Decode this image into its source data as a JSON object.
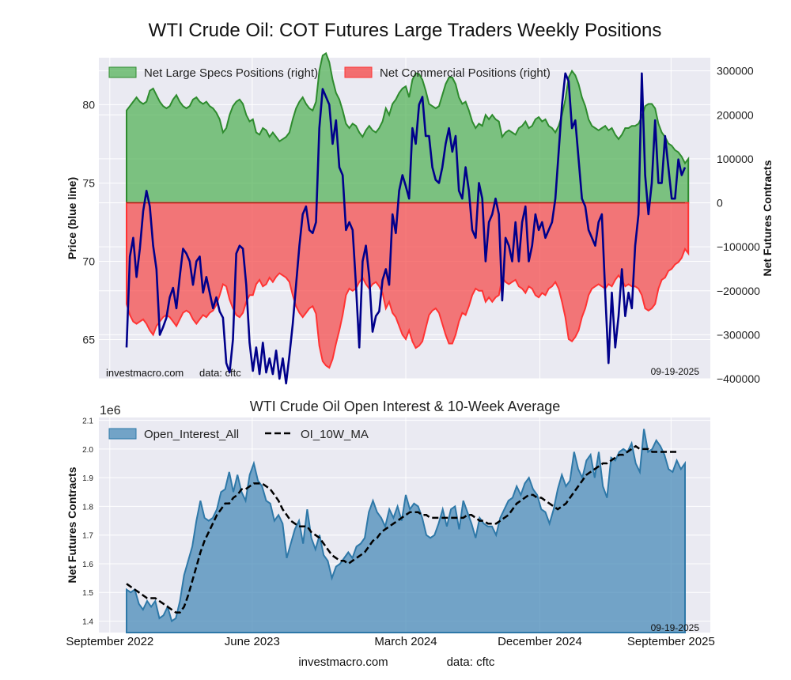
{
  "figure": {
    "title": "WTI Crude Oil: COT Futures Large Traders Weekly Positions",
    "footer_site": "investmacro.com",
    "footer_data": "data: cftc"
  },
  "chart_data": [
    {
      "type": "line+area",
      "title": "WTI Crude Oil: COT Futures Large Traders Weekly Positions",
      "ylabel_left": "Price (blue line)",
      "ylabel_right": "Net Futures Contracts",
      "left_ticks": [
        65,
        70,
        75,
        80
      ],
      "right_ticks": [
        -400000,
        -300000,
        -200000,
        -100000,
        0,
        100000,
        200000,
        300000
      ],
      "right_tick_labels": [
        "−400000",
        "−300000",
        "−200000",
        "−100000",
        "0",
        "100000",
        "200000",
        "300000"
      ],
      "ylim_left": [
        62.5,
        83
      ],
      "ylim_right": [
        -400000,
        330000
      ],
      "legend": [
        "Net Large Specs Positions (right)",
        "Net Commercial Positions (right)"
      ],
      "watermark_left": "investmacro.com",
      "watermark_data": "data: cftc",
      "date_label": "09-19-2025",
      "series": {
        "price": [
          64.5,
          70.3,
          71.5,
          69.0,
          70.8,
          73.2,
          74.5,
          73.5,
          71.0,
          69.5,
          65.3,
          65.8,
          66.4,
          67.7,
          68.3,
          67.0,
          69.0,
          70.8,
          70.5,
          70.0,
          68.5,
          70.0,
          70.3,
          68.0,
          69.0,
          68.0,
          67.0,
          67.7,
          66.8,
          66.4,
          63.5,
          62.9,
          65.0,
          70.5,
          71.0,
          70.8,
          68.5,
          64.8,
          63.0,
          64.5,
          62.8,
          64.8,
          62.9,
          63.8,
          62.8,
          64.3,
          62.5,
          63.8,
          62.2,
          64.0,
          66.0,
          68.5,
          71.0,
          73.0,
          73.5,
          72.0,
          71.8,
          72.5,
          78.5,
          81.0,
          80.5,
          80.0,
          77.5,
          79.0,
          76.0,
          75.5,
          72.0,
          72.5,
          72.0,
          68.5,
          64.5,
          70.0,
          71.0,
          69.0,
          65.5,
          66.5,
          66.8,
          68.8,
          69.5,
          68.5,
          73.0,
          71.8,
          74.5,
          75.5,
          74.8,
          74.0,
          78.5,
          77.5,
          80.0,
          80.5,
          78.0,
          78.0,
          76.0,
          75.2,
          75.0,
          76.0,
          77.5,
          78.5,
          77.0,
          78.0,
          74.5,
          74.0,
          76.0,
          74.5,
          72.0,
          71.5,
          75.0,
          74.0,
          70.0,
          72.5,
          73.0,
          74.0,
          73.0,
          67.5,
          71.5,
          71.0,
          70.0,
          72.5,
          70.0,
          72.5,
          73.5,
          70.0,
          71.0,
          73.0,
          72.0,
          72.5,
          71.5,
          72.0,
          72.5,
          74.0,
          77.0,
          80.0,
          82.0,
          81.5,
          78.5,
          79.0,
          76.5,
          74.0,
          73.5,
          72.0,
          71.5,
          71.0,
          72.5,
          73.0,
          68.0,
          63.5,
          68.0,
          64.5,
          66.5,
          69.5,
          66.5,
          68.0,
          67.0,
          71.0,
          73.0,
          82.0,
          75.5,
          73.0,
          75.0,
          79.0,
          75.0,
          75.0,
          78.0,
          76.0,
          74.0,
          74.0,
          76.5,
          75.5,
          76.0
        ],
        "specs": [
          210000,
          220000,
          230000,
          240000,
          230000,
          225000,
          230000,
          255000,
          260000,
          245000,
          230000,
          220000,
          215000,
          220000,
          235000,
          245000,
          230000,
          220000,
          215000,
          220000,
          235000,
          240000,
          230000,
          225000,
          230000,
          220000,
          215000,
          205000,
          190000,
          160000,
          170000,
          200000,
          220000,
          230000,
          235000,
          225000,
          200000,
          185000,
          190000,
          160000,
          155000,
          170000,
          165000,
          150000,
          160000,
          150000,
          140000,
          145000,
          150000,
          160000,
          190000,
          215000,
          230000,
          240000,
          225000,
          215000,
          210000,
          230000,
          300000,
          335000,
          340000,
          320000,
          280000,
          250000,
          235000,
          210000,
          180000,
          170000,
          180000,
          175000,
          160000,
          150000,
          165000,
          175000,
          165000,
          160000,
          170000,
          185000,
          215000,
          200000,
          225000,
          235000,
          250000,
          260000,
          265000,
          240000,
          280000,
          295000,
          293000,
          280000,
          255000,
          225000,
          220000,
          215000,
          220000,
          245000,
          270000,
          285000,
          285000,
          270000,
          240000,
          225000,
          230000,
          210000,
          185000,
          170000,
          180000,
          175000,
          200000,
          190000,
          200000,
          190000,
          185000,
          150000,
          160000,
          165000,
          160000,
          155000,
          170000,
          175000,
          185000,
          170000,
          175000,
          190000,
          195000,
          185000,
          190000,
          175000,
          170000,
          160000,
          175000,
          200000,
          235000,
          285000,
          300000,
          290000,
          270000,
          240000,
          220000,
          190000,
          175000,
          170000,
          165000,
          170000,
          175000,
          165000,
          170000,
          155000,
          145000,
          155000,
          170000,
          170000,
          175000,
          175000,
          180000,
          195000,
          220000,
          225000,
          225000,
          215000,
          180000,
          160000,
          150000,
          135000,
          130000,
          120000,
          115000,
          105000,
          90000,
          100000
        ],
        "comm": [
          -230000,
          -255000,
          -270000,
          -275000,
          -270000,
          -265000,
          -275000,
          -290000,
          -300000,
          -280000,
          -270000,
          -260000,
          -255000,
          -260000,
          -270000,
          -280000,
          -265000,
          -250000,
          -245000,
          -250000,
          -265000,
          -275000,
          -265000,
          -255000,
          -260000,
          -250000,
          -245000,
          -232000,
          -210000,
          -185000,
          -190000,
          -220000,
          -240000,
          -255000,
          -260000,
          -250000,
          -225000,
          -210000,
          -210000,
          -185000,
          -175000,
          -190000,
          -185000,
          -170000,
          -180000,
          -168000,
          -160000,
          -165000,
          -170000,
          -180000,
          -210000,
          -235000,
          -250000,
          -260000,
          -250000,
          -240000,
          -235000,
          -252000,
          -325000,
          -360000,
          -370000,
          -375000,
          -355000,
          -320000,
          -290000,
          -255000,
          -210000,
          -195000,
          -200000,
          -195000,
          -180000,
          -170000,
          -185000,
          -195000,
          -185000,
          -180000,
          -190000,
          -205000,
          -240000,
          -225000,
          -250000,
          -260000,
          -280000,
          -300000,
          -310000,
          -290000,
          -315000,
          -330000,
          -325000,
          -315000,
          -285000,
          -255000,
          -245000,
          -240000,
          -250000,
          -275000,
          -300000,
          -320000,
          -320000,
          -300000,
          -270000,
          -250000,
          -255000,
          -235000,
          -210000,
          -195000,
          -200000,
          -200000,
          -225000,
          -215000,
          -225000,
          -215000,
          -210000,
          -170000,
          -180000,
          -185000,
          -180000,
          -175000,
          -190000,
          -195000,
          -205000,
          -190000,
          -195000,
          -210000,
          -215000,
          -205000,
          -210000,
          -195000,
          -190000,
          -180000,
          -195000,
          -225000,
          -260000,
          -310000,
          -315000,
          -305000,
          -290000,
          -260000,
          -240000,
          -210000,
          -195000,
          -190000,
          -185000,
          -190000,
          -195000,
          -185000,
          -190000,
          -175000,
          -165000,
          -175000,
          -190000,
          -185000,
          -190000,
          -190000,
          -195000,
          -210000,
          -240000,
          -245000,
          -240000,
          -230000,
          -195000,
          -175000,
          -170000,
          -155000,
          -150000,
          -140000,
          -135000,
          -125000,
          -105000,
          -115000
        ]
      }
    },
    {
      "type": "area+line",
      "title": "WTI Crude Oil Open Interest & 10-Week Average",
      "ylabel": "Net Futures Contracts",
      "y_offset_label": "1e6",
      "y_ticks": [
        1.4,
        1.5,
        1.6,
        1.7,
        1.8,
        1.9,
        2.0,
        2.1
      ],
      "ylim": [
        1.36,
        2.11
      ],
      "x_ticks": [
        "September 2022",
        "June 2023",
        "March 2024",
        "December 2024",
        "September 2025"
      ],
      "legend": [
        "Open_Interest_All",
        "OI_10W_MA"
      ],
      "date_label": "09-19-2025",
      "series": {
        "open_interest": [
          1.51,
          1.5,
          1.51,
          1.46,
          1.44,
          1.47,
          1.45,
          1.47,
          1.41,
          1.42,
          1.45,
          1.4,
          1.41,
          1.47,
          1.56,
          1.61,
          1.66,
          1.75,
          1.82,
          1.76,
          1.75,
          1.76,
          1.79,
          1.85,
          1.86,
          1.92,
          1.85,
          1.91,
          1.85,
          1.82,
          1.91,
          1.95,
          1.89,
          1.87,
          1.82,
          1.81,
          1.75,
          1.77,
          1.74,
          1.62,
          1.67,
          1.72,
          1.75,
          1.67,
          1.79,
          1.69,
          1.65,
          1.7,
          1.63,
          1.61,
          1.55,
          1.59,
          1.6,
          1.62,
          1.64,
          1.62,
          1.66,
          1.67,
          1.69,
          1.78,
          1.82,
          1.78,
          1.76,
          1.73,
          1.79,
          1.76,
          1.8,
          1.75,
          1.84,
          1.79,
          1.81,
          1.8,
          1.76,
          1.7,
          1.69,
          1.7,
          1.74,
          1.79,
          1.73,
          1.79,
          1.8,
          1.72,
          1.82,
          1.78,
          1.74,
          1.69,
          1.76,
          1.74,
          1.73,
          1.73,
          1.7,
          1.76,
          1.79,
          1.82,
          1.83,
          1.87,
          1.84,
          1.88,
          1.9,
          1.86,
          1.84,
          1.79,
          1.78,
          1.74,
          1.79,
          1.86,
          1.91,
          1.87,
          1.89,
          1.99,
          1.93,
          1.9,
          1.96,
          1.98,
          1.9,
          1.99,
          1.87,
          1.83,
          1.97,
          1.96,
          1.99,
          2.0,
          1.99,
          2.02,
          1.95,
          1.92,
          2.07,
          1.99,
          2.0,
          2.03,
          2.01,
          1.98,
          1.93,
          1.92,
          1.96,
          1.93,
          1.95
        ],
        "ma10": [
          1.53,
          1.52,
          1.51,
          1.5,
          1.49,
          1.48,
          1.48,
          1.48,
          1.47,
          1.46,
          1.45,
          1.44,
          1.43,
          1.43,
          1.45,
          1.49,
          1.54,
          1.59,
          1.64,
          1.68,
          1.71,
          1.74,
          1.77,
          1.79,
          1.81,
          1.81,
          1.83,
          1.84,
          1.86,
          1.86,
          1.87,
          1.88,
          1.88,
          1.88,
          1.87,
          1.86,
          1.84,
          1.82,
          1.79,
          1.77,
          1.75,
          1.74,
          1.73,
          1.73,
          1.73,
          1.71,
          1.7,
          1.69,
          1.67,
          1.65,
          1.63,
          1.62,
          1.61,
          1.61,
          1.6,
          1.61,
          1.62,
          1.63,
          1.64,
          1.66,
          1.68,
          1.69,
          1.71,
          1.72,
          1.73,
          1.74,
          1.75,
          1.76,
          1.77,
          1.78,
          1.78,
          1.78,
          1.77,
          1.77,
          1.76,
          1.76,
          1.76,
          1.76,
          1.76,
          1.76,
          1.76,
          1.76,
          1.76,
          1.77,
          1.77,
          1.76,
          1.75,
          1.75,
          1.74,
          1.74,
          1.74,
          1.75,
          1.76,
          1.77,
          1.79,
          1.81,
          1.82,
          1.83,
          1.84,
          1.84,
          1.83,
          1.83,
          1.82,
          1.81,
          1.8,
          1.79,
          1.8,
          1.81,
          1.83,
          1.85,
          1.87,
          1.89,
          1.91,
          1.92,
          1.93,
          1.94,
          1.95,
          1.95,
          1.96,
          1.97,
          1.98,
          1.98,
          1.99,
          2.0,
          2.01,
          2.0,
          2.0,
          2.0,
          1.99,
          1.99,
          1.99,
          1.99,
          1.99,
          1.99,
          1.99
        ]
      }
    }
  ]
}
